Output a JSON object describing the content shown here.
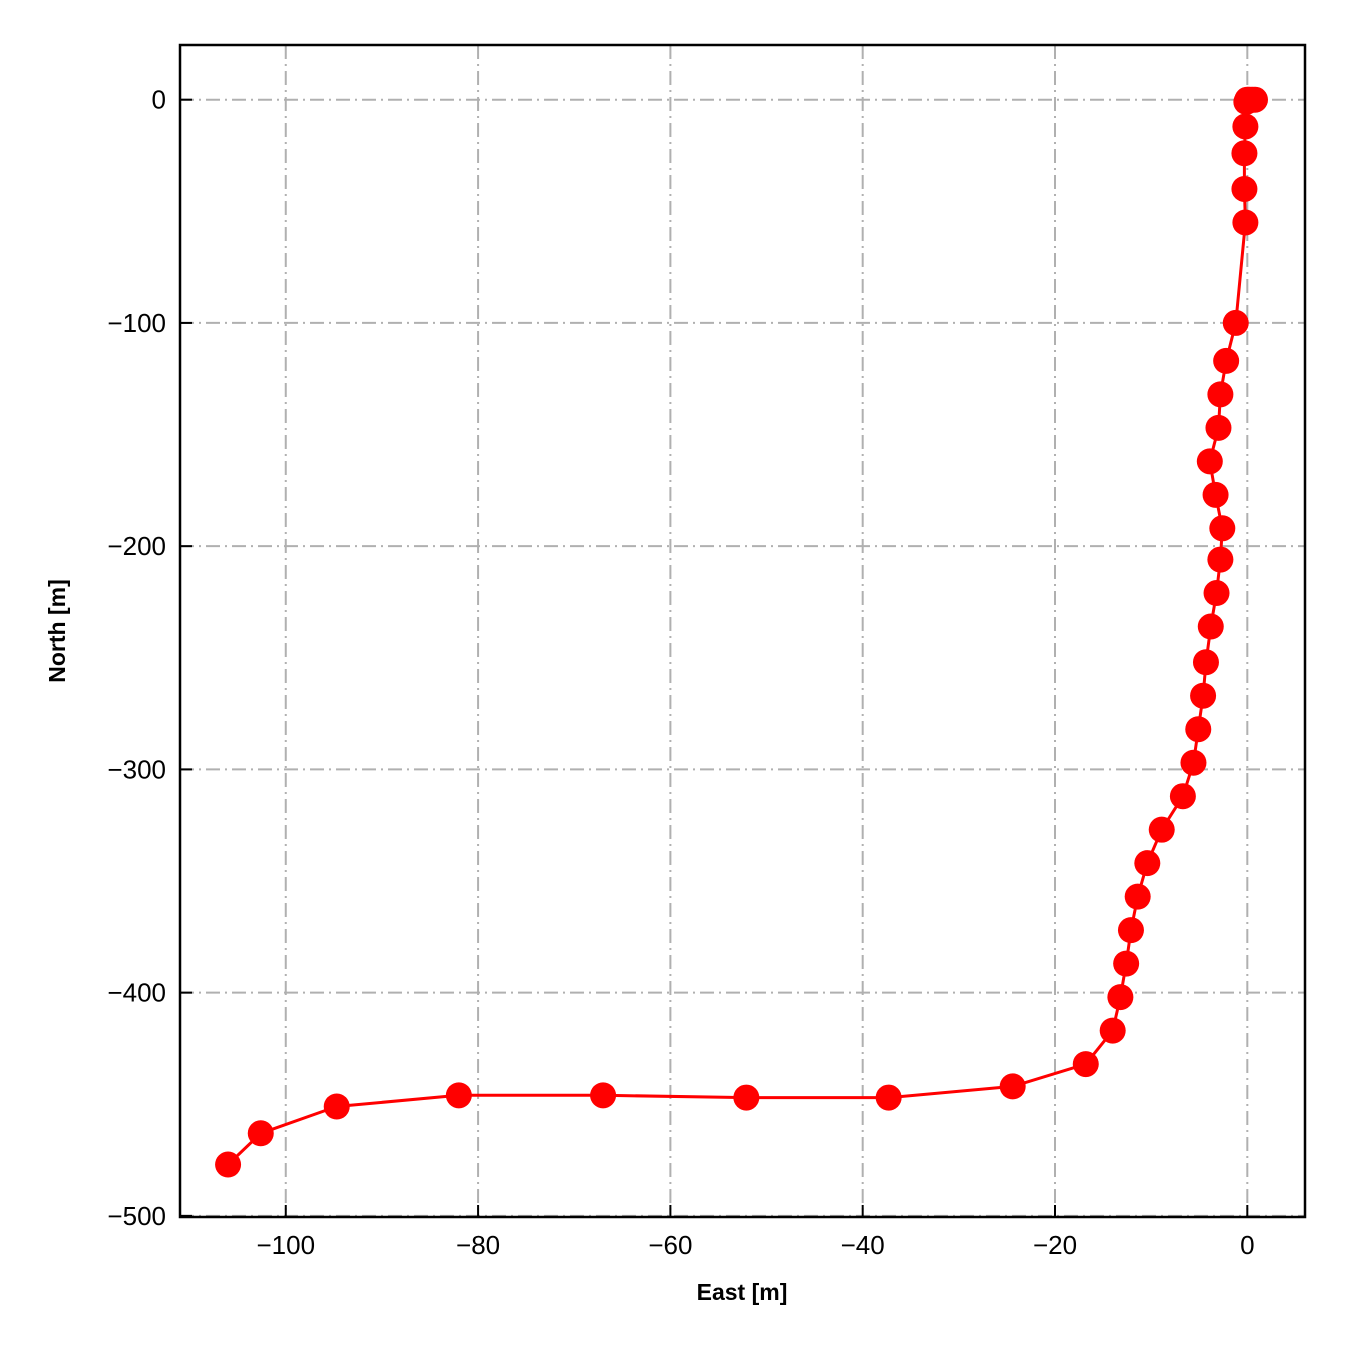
{
  "chart_data": {
    "type": "line",
    "title": "",
    "xlabel": "East [m]",
    "ylabel": "North [m]",
    "xlim": [
      -111,
      6
    ],
    "ylim": [
      -500.5,
      24.5
    ],
    "xticks": [
      -100,
      -80,
      -60,
      -40,
      -20,
      0
    ],
    "xtick_labels": [
      "−100",
      "−80",
      "−60",
      "−40",
      "−20",
      "0"
    ],
    "yticks": [
      0,
      -100,
      -200,
      -300,
      -400,
      -500
    ],
    "ytick_labels": [
      "0",
      "−100",
      "−200",
      "−300",
      "−400",
      "−500"
    ],
    "grid": true,
    "legend": "none",
    "series": [
      {
        "color": "#ff0000",
        "marker": "circle",
        "points": [
          [
            0.8,
            0
          ],
          [
            0.5,
            0
          ],
          [
            0.2,
            0
          ],
          [
            0,
            0
          ],
          [
            -0.1,
            -1
          ],
          [
            -0.2,
            -12
          ],
          [
            -0.3,
            -24
          ],
          [
            -0.3,
            -40
          ],
          [
            -0.2,
            -55
          ],
          [
            -1.2,
            -100
          ],
          [
            -2.2,
            -117
          ],
          [
            -2.8,
            -132
          ],
          [
            -3.0,
            -147
          ],
          [
            -3.9,
            -162
          ],
          [
            -3.3,
            -177
          ],
          [
            -2.6,
            -192
          ],
          [
            -2.8,
            -206
          ],
          [
            -3.2,
            -221
          ],
          [
            -3.8,
            -236
          ],
          [
            -4.3,
            -252
          ],
          [
            -4.6,
            -267
          ],
          [
            -5.1,
            -282
          ],
          [
            -5.6,
            -297
          ],
          [
            -6.7,
            -312
          ],
          [
            -8.9,
            -327
          ],
          [
            -10.4,
            -342
          ],
          [
            -11.4,
            -357
          ],
          [
            -12.1,
            -372
          ],
          [
            -12.6,
            -387
          ],
          [
            -13.2,
            -402
          ],
          [
            -14.0,
            -417
          ],
          [
            -16.8,
            -432
          ],
          [
            -24.4,
            -442
          ],
          [
            -37.3,
            -447
          ],
          [
            -52.1,
            -447
          ],
          [
            -67.0,
            -446
          ],
          [
            -82.0,
            -446
          ],
          [
            -94.7,
            -451
          ],
          [
            -102.6,
            -463
          ],
          [
            -106.0,
            -477
          ]
        ]
      }
    ]
  }
}
